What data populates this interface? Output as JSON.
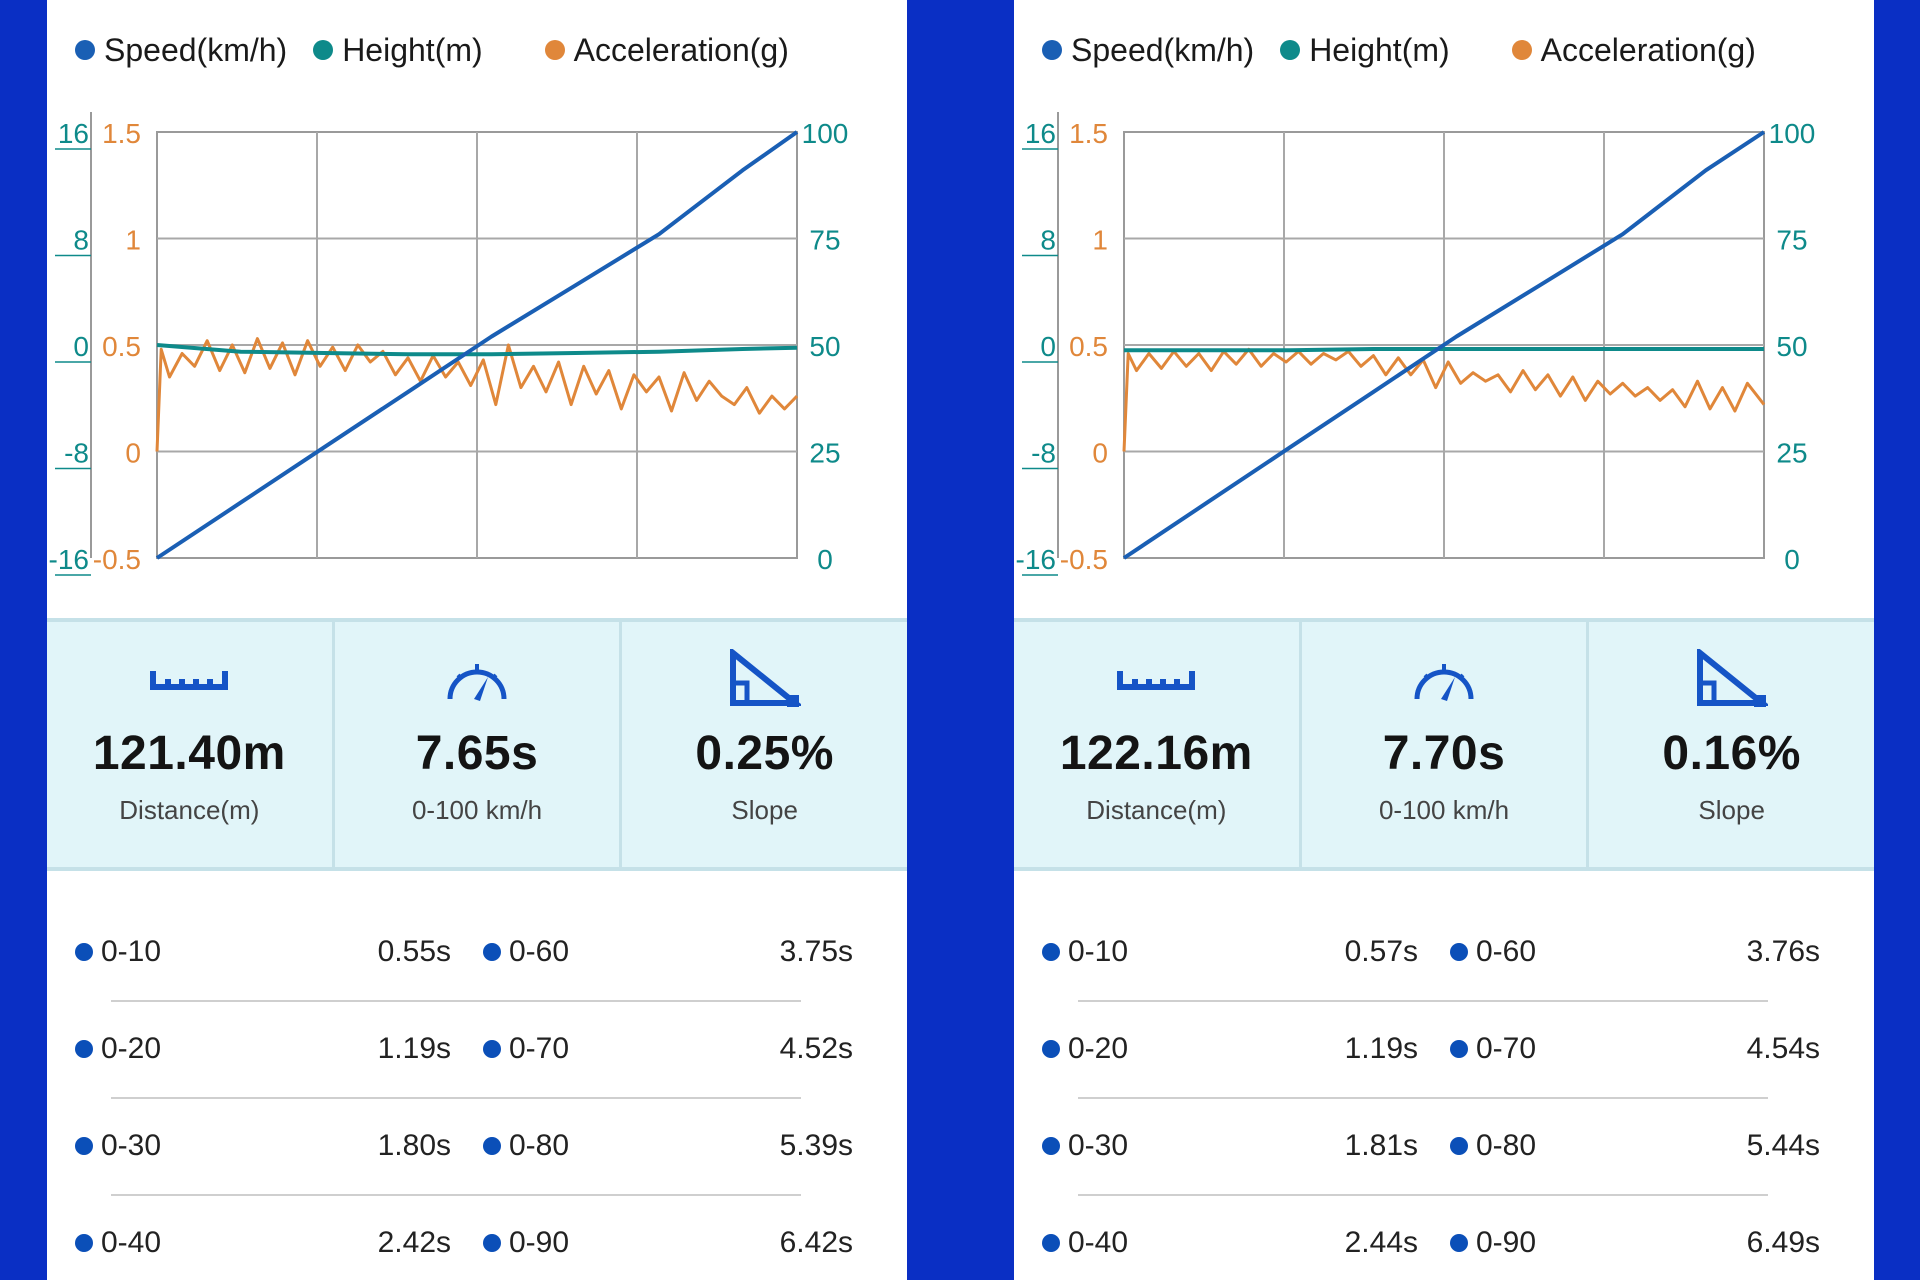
{
  "colors": {
    "speed": "#1a5fb4",
    "height": "#0e8a8a",
    "acceleration": "#e0873a",
    "background": "#0a2fc4",
    "stats_bg": "#e1f5f9",
    "icon": "#1554c6"
  },
  "panels": [
    {
      "legend": [
        "Speed(km/h)",
        "Height(m)",
        "Acceleration(g)"
      ],
      "stats": [
        {
          "icon": "ruler-icon",
          "value": "121.40m",
          "label": "Distance(m)"
        },
        {
          "icon": "speedometer-icon",
          "value": "7.65s",
          "label": "0-100 km/h"
        },
        {
          "icon": "slope-icon",
          "value": "0.25%",
          "label": "Slope"
        }
      ],
      "splits": [
        {
          "l1": "0-10",
          "t1": "0.55s",
          "l2": "0-60",
          "t2": "3.75s"
        },
        {
          "l1": "0-20",
          "t1": "1.19s",
          "l2": "0-70",
          "t2": "4.52s"
        },
        {
          "l1": "0-30",
          "t1": "1.80s",
          "l2": "0-80",
          "t2": "5.39s"
        },
        {
          "l1": "0-40",
          "t1": "2.42s",
          "l2": "0-90",
          "t2": "6.42s"
        }
      ]
    },
    {
      "legend": [
        "Speed(km/h)",
        "Height(m)",
        "Acceleration(g)"
      ],
      "stats": [
        {
          "icon": "ruler-icon",
          "value": "122.16m",
          "label": "Distance(m)"
        },
        {
          "icon": "speedometer-icon",
          "value": "7.70s",
          "label": "0-100 km/h"
        },
        {
          "icon": "slope-icon",
          "value": "0.16%",
          "label": "Slope"
        }
      ],
      "splits": [
        {
          "l1": "0-10",
          "t1": "0.57s",
          "l2": "0-60",
          "t2": "3.76s"
        },
        {
          "l1": "0-20",
          "t1": "1.19s",
          "l2": "0-70",
          "t2": "4.54s"
        },
        {
          "l1": "0-30",
          "t1": "1.81s",
          "l2": "0-80",
          "t2": "5.44s"
        },
        {
          "l1": "0-40",
          "t1": "2.44s",
          "l2": "0-90",
          "t2": "6.49s"
        }
      ]
    }
  ],
  "chart_data": [
    {
      "type": "line",
      "axes": {
        "height_ticks": [
          "16",
          "8",
          "0",
          "-8",
          "-16"
        ],
        "accel_ticks": [
          "1.5",
          "1",
          "0.5",
          "0",
          "-0.5"
        ],
        "speed_ticks": [
          "100",
          "75",
          "50",
          "25",
          "0"
        ],
        "height_range": [
          -16,
          16
        ],
        "accel_range": [
          -0.5,
          1.5
        ],
        "speed_range": [
          0,
          100
        ],
        "x_range": [
          0,
          7.65
        ],
        "grid": true
      },
      "series": [
        {
          "name": "Speed(km/h)",
          "axis": "speed",
          "x": [
            0,
            1.0,
            2.0,
            3.0,
            4.0,
            5.0,
            6.0,
            7.0,
            7.65
          ],
          "values": [
            0,
            13,
            26,
            39,
            52,
            64,
            76,
            91,
            100
          ]
        },
        {
          "name": "Height(m)",
          "axis": "height",
          "x": [
            0,
            1.0,
            2.0,
            3.0,
            4.0,
            5.0,
            6.0,
            7.0,
            7.65
          ],
          "values": [
            0,
            -0.5,
            -0.6,
            -0.7,
            -0.7,
            -0.6,
            -0.5,
            -0.3,
            -0.2
          ]
        },
        {
          "name": "Acceleration(g)",
          "axis": "accel",
          "x": [
            0,
            0.05,
            0.15,
            0.3,
            0.45,
            0.6,
            0.75,
            0.9,
            1.05,
            1.2,
            1.35,
            1.5,
            1.65,
            1.8,
            1.95,
            2.1,
            2.25,
            2.4,
            2.55,
            2.7,
            2.85,
            3.0,
            3.15,
            3.3,
            3.45,
            3.6,
            3.75,
            3.9,
            4.05,
            4.2,
            4.35,
            4.5,
            4.65,
            4.8,
            4.95,
            5.1,
            5.25,
            5.4,
            5.55,
            5.7,
            5.85,
            6.0,
            6.15,
            6.3,
            6.45,
            6.6,
            6.75,
            6.9,
            7.05,
            7.2,
            7.35,
            7.5,
            7.65
          ],
          "values": [
            0,
            0.48,
            0.35,
            0.46,
            0.4,
            0.52,
            0.38,
            0.5,
            0.37,
            0.53,
            0.39,
            0.51,
            0.36,
            0.52,
            0.4,
            0.49,
            0.38,
            0.5,
            0.42,
            0.47,
            0.36,
            0.44,
            0.33,
            0.45,
            0.35,
            0.42,
            0.31,
            0.43,
            0.22,
            0.5,
            0.3,
            0.4,
            0.28,
            0.42,
            0.22,
            0.4,
            0.27,
            0.38,
            0.2,
            0.36,
            0.28,
            0.35,
            0.19,
            0.37,
            0.24,
            0.33,
            0.26,
            0.22,
            0.3,
            0.18,
            0.26,
            0.2,
            0.26
          ]
        }
      ]
    },
    {
      "type": "line",
      "axes": {
        "height_ticks": [
          "16",
          "8",
          "0",
          "-8",
          "-16"
        ],
        "accel_ticks": [
          "1.5",
          "1",
          "0.5",
          "0",
          "-0.5"
        ],
        "speed_ticks": [
          "100",
          "75",
          "50",
          "25",
          "0"
        ],
        "height_range": [
          -16,
          16
        ],
        "accel_range": [
          -0.5,
          1.5
        ],
        "speed_range": [
          0,
          100
        ],
        "x_range": [
          0,
          7.7
        ],
        "grid": true
      },
      "series": [
        {
          "name": "Speed(km/h)",
          "axis": "speed",
          "x": [
            0,
            1.0,
            2.0,
            3.0,
            4.0,
            5.0,
            6.0,
            7.0,
            7.7
          ],
          "values": [
            0,
            13,
            26,
            39,
            52,
            64,
            76,
            91,
            100
          ]
        },
        {
          "name": "Height(m)",
          "axis": "height",
          "x": [
            0,
            1.0,
            2.0,
            3.0,
            4.0,
            5.0,
            6.0,
            7.0,
            7.7
          ],
          "values": [
            -0.4,
            -0.4,
            -0.4,
            -0.3,
            -0.3,
            -0.3,
            -0.3,
            -0.3,
            -0.3
          ]
        },
        {
          "name": "Acceleration(g)",
          "axis": "accel",
          "x": [
            0,
            0.05,
            0.15,
            0.3,
            0.45,
            0.6,
            0.75,
            0.9,
            1.05,
            1.2,
            1.35,
            1.5,
            1.65,
            1.8,
            1.95,
            2.1,
            2.25,
            2.4,
            2.55,
            2.7,
            2.85,
            3.0,
            3.15,
            3.3,
            3.45,
            3.6,
            3.75,
            3.9,
            4.05,
            4.2,
            4.35,
            4.5,
            4.65,
            4.8,
            4.95,
            5.1,
            5.25,
            5.4,
            5.55,
            5.7,
            5.85,
            6.0,
            6.15,
            6.3,
            6.45,
            6.6,
            6.75,
            6.9,
            7.05,
            7.2,
            7.35,
            7.5,
            7.7
          ],
          "values": [
            0,
            0.46,
            0.38,
            0.46,
            0.39,
            0.47,
            0.4,
            0.46,
            0.38,
            0.47,
            0.41,
            0.48,
            0.4,
            0.46,
            0.42,
            0.47,
            0.41,
            0.46,
            0.43,
            0.47,
            0.4,
            0.45,
            0.36,
            0.44,
            0.36,
            0.43,
            0.3,
            0.42,
            0.32,
            0.37,
            0.33,
            0.36,
            0.28,
            0.38,
            0.29,
            0.36,
            0.26,
            0.35,
            0.24,
            0.33,
            0.27,
            0.32,
            0.26,
            0.3,
            0.24,
            0.29,
            0.21,
            0.33,
            0.2,
            0.3,
            0.19,
            0.32,
            0.22
          ]
        }
      ]
    }
  ]
}
